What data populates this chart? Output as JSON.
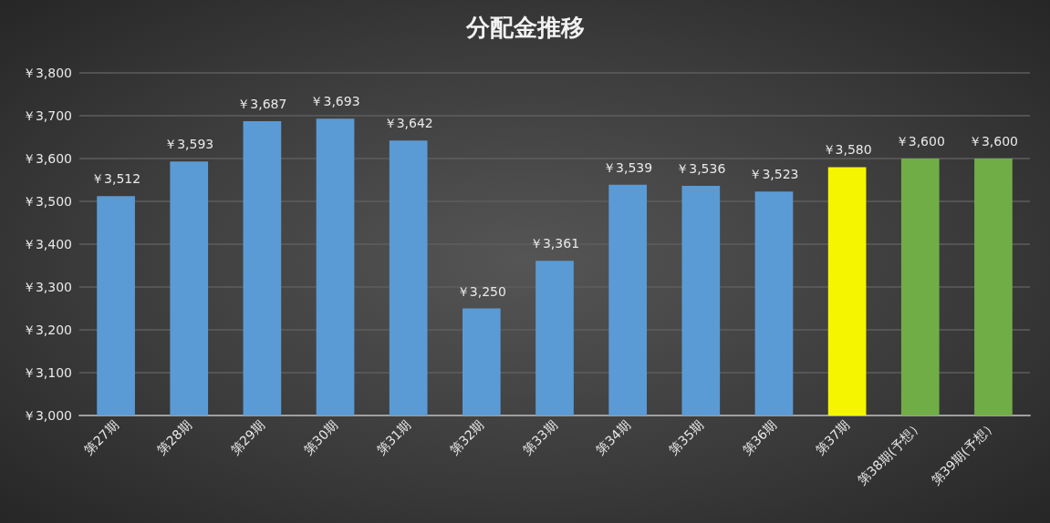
{
  "chart_data": {
    "type": "bar",
    "title": "分配金推移",
    "categories": [
      "第27期",
      "第28期",
      "第29期",
      "第30期",
      "第31期",
      "第32期",
      "第33期",
      "第34期",
      "第35期",
      "第36期",
      "第37期",
      "第38期(予想）",
      "第39期(予想）"
    ],
    "values": [
      3512,
      3593,
      3687,
      3693,
      3642,
      3250,
      3361,
      3539,
      3536,
      3523,
      3580,
      3600,
      3600
    ],
    "value_labels": [
      "￥3,512",
      "￥3,593",
      "￥3,687",
      "￥3,693",
      "￥3,642",
      "￥3,250",
      "￥3,361",
      "￥3,539",
      "￥3,536",
      "￥3,523",
      "￥3,580",
      "￥3,600",
      "￥3,600"
    ],
    "colors": [
      "#5b9bd5",
      "#5b9bd5",
      "#5b9bd5",
      "#5b9bd5",
      "#5b9bd5",
      "#5b9bd5",
      "#5b9bd5",
      "#5b9bd5",
      "#5b9bd5",
      "#5b9bd5",
      "#f5f500",
      "#70ad47",
      "#70ad47"
    ],
    "ylim": [
      3000,
      3800
    ],
    "yticks": [
      {
        "value": 3000,
        "label": "￥3,000"
      },
      {
        "value": 3100,
        "label": "￥3,100"
      },
      {
        "value": 3200,
        "label": "￥3,200"
      },
      {
        "value": 3300,
        "label": "￥3,300"
      },
      {
        "value": 3400,
        "label": "￥3,400"
      },
      {
        "value": 3500,
        "label": "￥3,500"
      },
      {
        "value": 3600,
        "label": "￥3,600"
      },
      {
        "value": 3700,
        "label": "￥3,700"
      },
      {
        "value": 3800,
        "label": "￥3,800"
      }
    ],
    "grid": "y"
  }
}
